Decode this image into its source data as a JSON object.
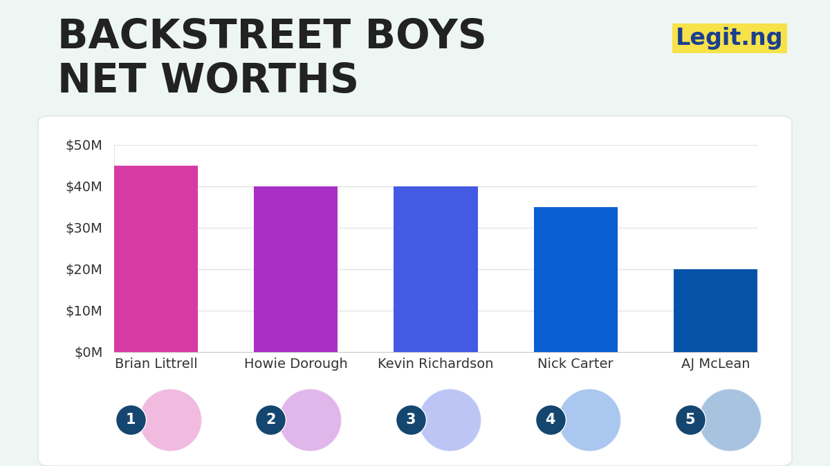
{
  "chart_data": {
    "type": "bar",
    "title": "BACKSTREET BOYS\nNET WORTHS",
    "logo": "Legit.ng",
    "categories": [
      "Brian Littrell",
      "Howie Dorough",
      "Kevin Richardson",
      "Nick Carter",
      "AJ McLean"
    ],
    "values": [
      45,
      40,
      40,
      35,
      20
    ],
    "ranks": [
      "1",
      "2",
      "3",
      "4",
      "5"
    ],
    "colors": [
      "#d83aa4",
      "#a92fc5",
      "#445ae2",
      "#0a5fd2",
      "#0553a8"
    ],
    "ylim": [
      0,
      50
    ],
    "yticks": [
      {
        "value": 0,
        "label": "$0M"
      },
      {
        "value": 10,
        "label": "$10M"
      },
      {
        "value": 20,
        "label": "$20M"
      },
      {
        "value": 30,
        "label": "$30M"
      },
      {
        "value": 40,
        "label": "$40M"
      },
      {
        "value": 50,
        "label": "$50M"
      }
    ],
    "grid": true
  }
}
